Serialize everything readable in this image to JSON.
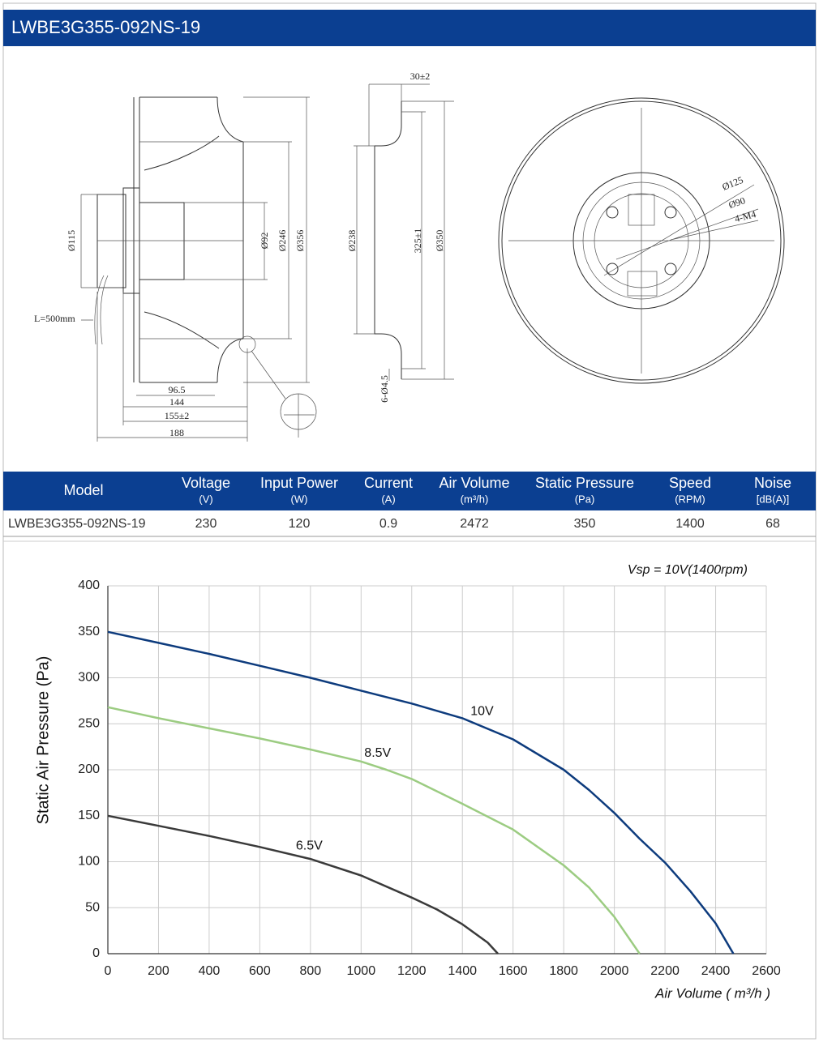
{
  "header": {
    "title": "LWBE3G355-092NS-19"
  },
  "drawing": {
    "labels": [
      "30±2",
      "Ø115",
      "Ø92",
      "Ø246",
      "Ø356",
      "L=500mm",
      "96.5",
      "144",
      "155±2",
      "188",
      "Ø238",
      "325±1",
      "Ø350",
      "6-Ø4.5",
      "Ø125",
      "Ø90",
      "4-M4"
    ]
  },
  "table": {
    "headers": [
      {
        "name": "Model"
      },
      {
        "name": "Voltage",
        "unit": "(V)"
      },
      {
        "name": "Input Power",
        "unit": "(W)"
      },
      {
        "name": "Current",
        "unit": "(A)"
      },
      {
        "name": "Air Volume",
        "unit": "(m³/h)"
      },
      {
        "name": "Static Pressure",
        "unit": "(Pa)"
      },
      {
        "name": "Speed",
        "unit": "(RPM)"
      },
      {
        "name": "Noise",
        "unit": "[dB(A)]"
      }
    ],
    "rows": [
      [
        "LWBE3G355-092NS-19",
        "230",
        "120",
        "0.9",
        "2472",
        "350",
        "1400",
        "68"
      ]
    ]
  },
  "chart_data": {
    "type": "line",
    "annotation": "Vsp = 10V(1400rpm)",
    "x_label": "Air Volume ( m³/h )",
    "y_label": "Static Air Pressure  (Pa)",
    "xlim": [
      0,
      2600
    ],
    "xticks": [
      0,
      200,
      400,
      600,
      800,
      1000,
      1200,
      1400,
      1600,
      1800,
      2000,
      2200,
      2400,
      2600
    ],
    "ylim": [
      0,
      400
    ],
    "yticks": [
      0,
      50,
      100,
      150,
      200,
      250,
      300,
      350,
      400
    ],
    "grid": true,
    "series": [
      {
        "name": "10V",
        "color": "#0d3b7d",
        "x": [
          0,
          200,
          400,
          600,
          800,
          1000,
          1200,
          1400,
          1600,
          1800,
          1900,
          2000,
          2100,
          2200,
          2300,
          2400,
          2470
        ],
        "values": [
          350,
          338,
          326,
          313,
          300,
          286,
          272,
          256,
          233,
          200,
          178,
          153,
          125,
          99,
          68,
          33,
          0
        ]
      },
      {
        "name": "8.5V",
        "color": "#9ccc82",
        "x": [
          0,
          200,
          400,
          600,
          800,
          1000,
          1100,
          1200,
          1400,
          1600,
          1800,
          1900,
          2000,
          2100
        ],
        "values": [
          268,
          256,
          245,
          234,
          222,
          209,
          200,
          190,
          163,
          135,
          96,
          72,
          40,
          0
        ]
      },
      {
        "name": "6.5V",
        "color": "#3a3a3a",
        "x": [
          0,
          200,
          400,
          600,
          800,
          1000,
          1200,
          1300,
          1400,
          1500,
          1540
        ],
        "values": [
          150,
          139,
          128,
          116,
          103,
          85,
          61,
          48,
          32,
          12,
          0
        ]
      }
    ]
  }
}
